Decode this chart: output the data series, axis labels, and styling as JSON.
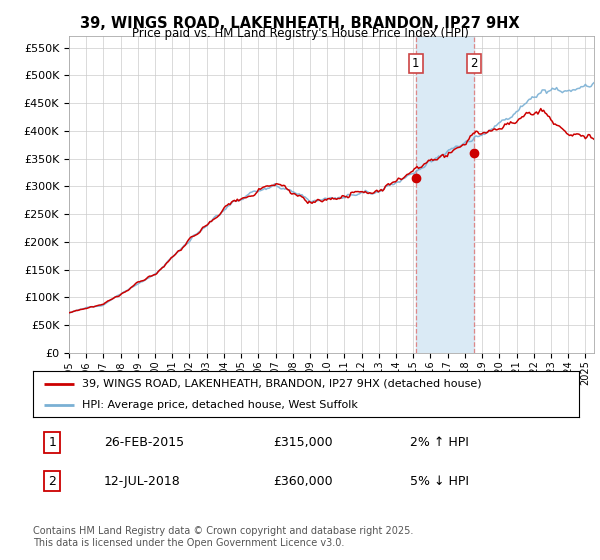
{
  "title": "39, WINGS ROAD, LAKENHEATH, BRANDON, IP27 9HX",
  "subtitle": "Price paid vs. HM Land Registry's House Price Index (HPI)",
  "ylabel_ticks": [
    "£0",
    "£50K",
    "£100K",
    "£150K",
    "£200K",
    "£250K",
    "£300K",
    "£350K",
    "£400K",
    "£450K",
    "£500K",
    "£550K"
  ],
  "ytick_values": [
    0,
    50000,
    100000,
    150000,
    200000,
    250000,
    300000,
    350000,
    400000,
    450000,
    500000,
    550000
  ],
  "ylim": [
    0,
    570000
  ],
  "xlim_start": 1995.0,
  "xlim_end": 2025.5,
  "purchase1_x": 2015.15,
  "purchase1_y": 315000,
  "purchase2_x": 2018.53,
  "purchase2_y": 360000,
  "shaded_region_x1": 2015.15,
  "shaded_region_x2": 2018.53,
  "legend_line1": "39, WINGS ROAD, LAKENHEATH, BRANDON, IP27 9HX (detached house)",
  "legend_line2": "HPI: Average price, detached house, West Suffolk",
  "annotation1_num": "1",
  "annotation1_date": "26-FEB-2015",
  "annotation1_price": "£315,000",
  "annotation1_hpi": "2% ↑ HPI",
  "annotation2_num": "2",
  "annotation2_date": "12-JUL-2018",
  "annotation2_price": "£360,000",
  "annotation2_hpi": "5% ↓ HPI",
  "footer": "Contains HM Land Registry data © Crown copyright and database right 2025.\nThis data is licensed under the Open Government Licence v3.0.",
  "line_color_red": "#cc0000",
  "line_color_blue": "#7ab0d4",
  "shade_color": "#daeaf5",
  "background_color": "#ffffff",
  "grid_color": "#cccccc"
}
